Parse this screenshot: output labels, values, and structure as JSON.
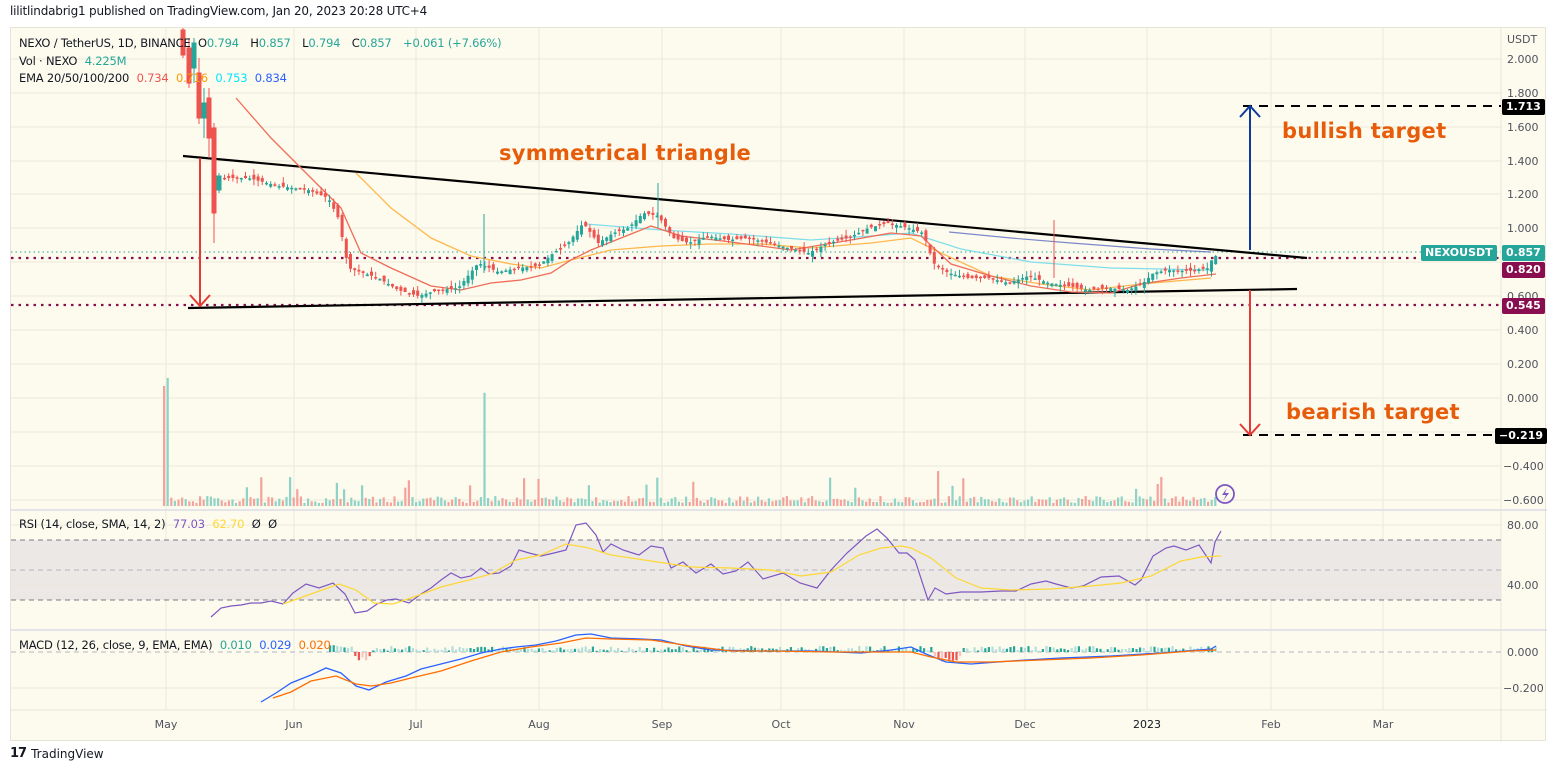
{
  "header": {
    "published_line": "lilitlindabrig1 published on TradingView.com, Jan 20, 2023 20:28 UTC+4"
  },
  "legend": {
    "symbol": "NEXO / TetherUS, 1D, BINANCE",
    "open_label": "O",
    "open": "0.794",
    "high_label": "H",
    "high": "0.857",
    "low_label": "L",
    "low": "0.794",
    "close_label": "C",
    "close": "0.857",
    "change": "+0.061 (+7.66%)",
    "vol_label": "Vol · NEXO",
    "vol": "4.225M",
    "ema_label": "EMA 20/50/100/200",
    "ema20": "0.734",
    "ema50": "0.716",
    "ema100": "0.753",
    "ema200": "0.834"
  },
  "rsi_legend": {
    "label": "RSI (14, close, SMA, 14, 2)",
    "rsi": "77.03",
    "sma": "62.70",
    "na1": "Ø",
    "na2": "Ø"
  },
  "macd_legend": {
    "label": "MACD (12, 26, close, 9, EMA, EMA)",
    "hist": "0.010",
    "macd": "0.029",
    "signal": "0.020"
  },
  "price_axis": {
    "currency": "USDT",
    "ticks": [
      "2.000",
      "1.800",
      "1.600",
      "1.400",
      "1.200",
      "1.000",
      "0.600",
      "0.400",
      "0.200",
      "0.000",
      "−0.400",
      "−0.600"
    ]
  },
  "rsi_axis": {
    "ticks": [
      "80.00",
      "40.00"
    ]
  },
  "macd_axis": {
    "ticks": [
      "0.000",
      "−0.200"
    ]
  },
  "time_axis": {
    "labels": [
      "May",
      "Jun",
      "Jul",
      "Aug",
      "Sep",
      "Oct",
      "Nov",
      "Dec",
      "2023",
      "Feb",
      "Mar"
    ]
  },
  "price_tags": {
    "bull_target": "1.713",
    "symbol_tag": "NEXOUSDT",
    "last_price": "0.857",
    "resistance": "0.820",
    "support": "0.545",
    "bear_target": "−0.219"
  },
  "annotations": {
    "pattern": "symmetrical triangle",
    "bullish": "bullish target",
    "bearish": "bearish target"
  },
  "footer": {
    "logo_mark": "17",
    "brand": "TradingView"
  },
  "colors": {
    "up": "#26a69a",
    "down": "#ef5350",
    "ema20": "#ef5350",
    "ema50": "#ff9800",
    "ema100": "#00e5ff",
    "ema200": "#2962ff",
    "rsi": "#7e57c2",
    "rsi_sma": "#fdd835",
    "macd": "#2962ff",
    "signal": "#ff6d00",
    "annotation": "#e65c0a",
    "level": "#880e4f"
  },
  "chart_data": [
    {
      "type": "candlestick",
      "title": "NEXO / TetherUS, 1D, BINANCE",
      "ylabel": "USDT",
      "ylim": [
        -0.65,
        2.1
      ],
      "x": [
        "May",
        "Jun",
        "Jul",
        "Aug",
        "Sep",
        "Oct",
        "Nov",
        "Dec",
        "2023",
        "Feb",
        "Mar"
      ],
      "approx_close_monthly": [
        1.9,
        1.3,
        0.6,
        0.85,
        1.05,
        0.9,
        0.95,
        0.68,
        0.63,
        0.857
      ],
      "last": {
        "open": 0.794,
        "high": 0.857,
        "low": 0.794,
        "close": 0.857,
        "change": 0.061,
        "change_pct": 7.66
      },
      "ema": {
        "20": 0.734,
        "50": 0.716,
        "100": 0.753,
        "200": 0.834
      },
      "levels": {
        "resistance": 0.82,
        "support": 0.545,
        "bullish_target": 1.713,
        "bearish_target": -0.219
      },
      "annotations": [
        "symmetrical triangle",
        "bullish target",
        "bearish target"
      ],
      "triangle": {
        "upper": [
          [
            "May",
            1.42
          ],
          [
            "Feb",
            0.83
          ]
        ],
        "lower": [
          [
            "May",
            0.54
          ],
          [
            "Feb",
            0.64
          ]
        ]
      }
    },
    {
      "type": "bar",
      "title": "Vol · NEXO",
      "last_value": "4.225M"
    },
    {
      "type": "line",
      "title": "RSI (14, close, SMA, 14, 2)",
      "ylim": [
        20,
        90
      ],
      "bands": [
        30,
        50,
        70
      ],
      "series": [
        {
          "name": "RSI",
          "last": 77.03
        },
        {
          "name": "SMA",
          "last": 62.7
        }
      ]
    },
    {
      "type": "line",
      "title": "MACD (12, 26, close, 9, EMA, EMA)",
      "series": [
        {
          "name": "Histogram",
          "last": 0.01
        },
        {
          "name": "MACD",
          "last": 0.029
        },
        {
          "name": "Signal",
          "last": 0.02
        }
      ]
    }
  ]
}
